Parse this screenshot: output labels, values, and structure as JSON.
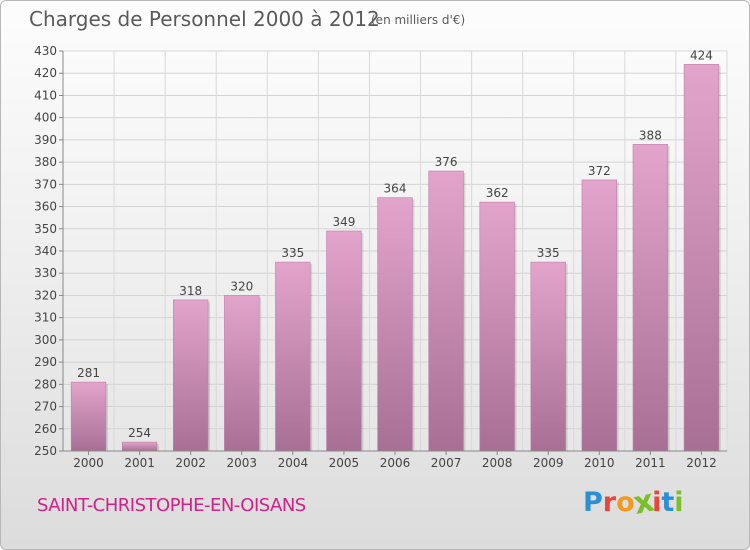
{
  "header": {
    "title": "Charges de Personnel 2000 à 2012",
    "subtitle": "(en milliers d'€)"
  },
  "footer": {
    "commune": "SAINT-CHRISTOPHE-EN-OISANS",
    "logo": "Proxiti"
  },
  "colors": {
    "bar_top": "#e3a4cb",
    "bar_bottom": "#a86f95",
    "commune_text": "#d0208a",
    "logo_letters": [
      "#2b8fd6",
      "#e8463a",
      "#f29a1f",
      "#7bbf2a",
      "#e8463a",
      "#2b8fd6",
      "#7bbf2a"
    ]
  },
  "chart_data": {
    "type": "bar",
    "title": "Charges de Personnel 2000 à 2012",
    "subtitle": "(en milliers d'€)",
    "categories": [
      "2000",
      "2001",
      "2002",
      "2003",
      "2004",
      "2005",
      "2006",
      "2007",
      "2008",
      "2009",
      "2010",
      "2011",
      "2012"
    ],
    "values": [
      281,
      254,
      318,
      320,
      335,
      349,
      364,
      376,
      362,
      335,
      372,
      388,
      424
    ],
    "data_labels": [
      "281",
      "254",
      "318",
      "320",
      "335",
      "349",
      "364",
      "376",
      "362",
      "335",
      "372",
      "388",
      "424"
    ],
    "ylim": [
      250,
      430
    ],
    "yticks": [
      "250",
      "260",
      "270",
      "280",
      "290",
      "300",
      "310",
      "320",
      "330",
      "340",
      "350",
      "360",
      "370",
      "380",
      "390",
      "400",
      "410",
      "420",
      "430"
    ],
    "grid": true,
    "legend": "none",
    "xlabel": "",
    "ylabel": ""
  }
}
